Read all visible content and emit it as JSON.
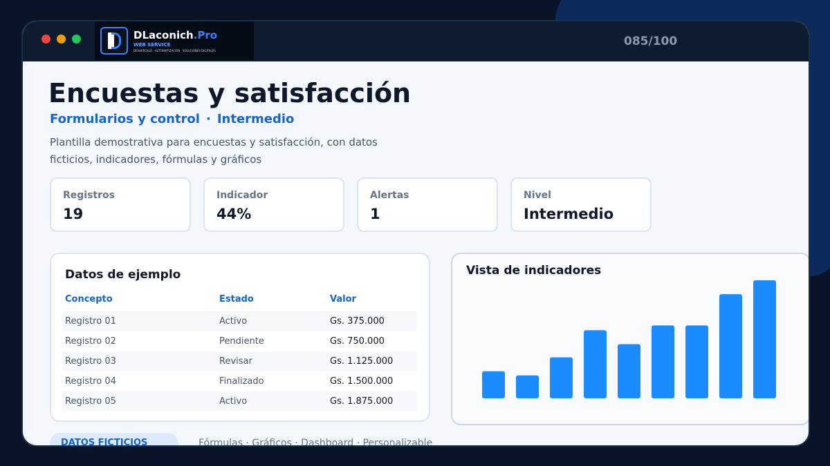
{
  "window": {
    "brand_name": "DLaconich",
    "brand_suffix": ".Pro",
    "brand_tagline": "WEB SERVICE",
    "brand_subline": "DESARROLLO · AUTOMATIZACIÓN · SOLUCIONES DIGITALES",
    "counter": "085/100"
  },
  "header": {
    "title": "Encuestas y satisfacción",
    "category": "Formularios y control",
    "separator": "·",
    "level": "Intermedio",
    "description": "Plantilla demostrativa para encuestas y satisfacción, con datos ficticios, indicadores, fórmulas y gráficos"
  },
  "kpis": [
    {
      "label": "Registros",
      "value": "19"
    },
    {
      "label": "Indicador",
      "value": "44%"
    },
    {
      "label": "Alertas",
      "value": "1"
    },
    {
      "label": "Nivel",
      "value": "Intermedio"
    }
  ],
  "table": {
    "title": "Datos de ejemplo",
    "columns": [
      "Concepto",
      "Estado",
      "Valor"
    ],
    "rows": [
      [
        "Registro 01",
        "Activo",
        "Gs. 375.000"
      ],
      [
        "Registro 02",
        "Pendiente",
        "Gs. 750.000"
      ],
      [
        "Registro 03",
        "Revisar",
        "Gs. 1.125.000"
      ],
      [
        "Registro 04",
        "Finalizado",
        "Gs. 1.500.000"
      ],
      [
        "Registro 05",
        "Activo",
        "Gs. 1.875.000"
      ]
    ]
  },
  "chart_data": {
    "type": "bar",
    "title": "Vista de indicadores",
    "xlabel": "",
    "ylabel": "",
    "values": [
      39,
      33,
      59,
      98,
      78,
      105,
      105,
      150,
      170
    ],
    "color": "#1a8cff",
    "grid": false
  },
  "footer": {
    "tag": "DATOS FICTICIOS",
    "features": "Fórmulas · Gráficos · Dashboard · Personalizable"
  }
}
